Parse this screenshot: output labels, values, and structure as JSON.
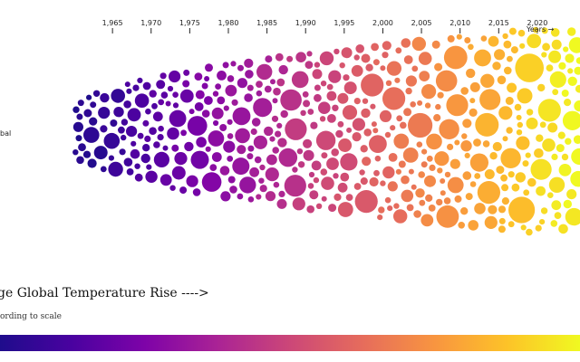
{
  "header": {
    "axis_unit_label": "Years →"
  },
  "side_label": "bal",
  "headline": "ge Global Temperature Rise ---->",
  "subnote": "ording to scale",
  "colors": {
    "scale": [
      "#1f0c8c",
      "#4a02a0",
      "#7e03a8",
      "#aa2395",
      "#cc4778",
      "#e66c5c",
      "#f89540",
      "#fdc328",
      "#f0f921"
    ]
  },
  "chart_data": {
    "type": "scatter",
    "encoding": "beeswarm of circles per year; color = temperature rise; radius = magnitude",
    "x_axis": {
      "ticks": [
        "1,965",
        "1,970",
        "1,975",
        "1,980",
        "1,985",
        "1,990",
        "1,995",
        "2,000",
        "2,005",
        "2,010",
        "2,015",
        "2,020"
      ],
      "tick_values": [
        1965,
        1970,
        1975,
        1980,
        1985,
        1990,
        1995,
        2000,
        2005,
        2010,
        2015,
        2020
      ],
      "range": [
        1959,
        2024
      ],
      "label": "Years →"
    },
    "year_range": [
      1960,
      2023
    ],
    "color_scale": "plasma (low rise = dark purple, high rise = yellow)",
    "grid": false,
    "legend": "gradient bar at bottom"
  }
}
